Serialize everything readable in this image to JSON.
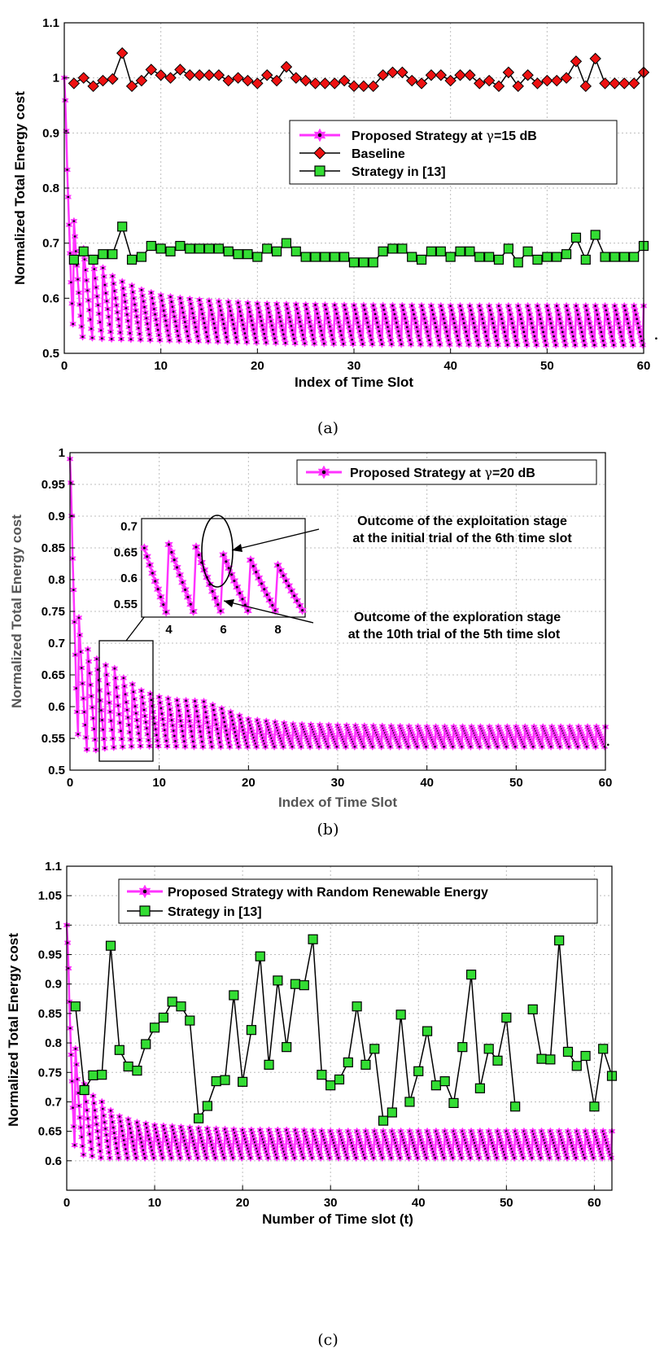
{
  "chart_data": [
    {
      "type": "line",
      "panel": "a",
      "caption": "(a)",
      "xlabel": "Index of Time Slot",
      "ylabel": "Normalized Total Energy cost",
      "xlim": [
        0,
        60
      ],
      "ylim": [
        0.5,
        1.1
      ],
      "xticks": [
        0,
        10,
        20,
        30,
        40,
        50,
        60
      ],
      "xtick_labels": [
        "0",
        "10",
        "20",
        "30",
        "40",
        "50",
        "60"
      ],
      "yticks": [
        0.5,
        0.6,
        0.7,
        0.8,
        0.9,
        1.0,
        1.1
      ],
      "ytick_labels": [
        "0.5",
        "0.6",
        "0.7",
        "0.8",
        "0.9",
        "1",
        "1.1"
      ],
      "grid": true,
      "legend_position": "upper-right",
      "series": [
        {
          "name": "Proposed Strategy at γ=15 dB",
          "legend_label": "Proposed Strategy at ",
          "legend_gamma": "γ",
          "legend_rest": "=15 dB",
          "marker": "hexagram",
          "color": "#ff33ff",
          "oscillating": true,
          "envelope_upper_x": [
            0,
            0.3,
            0.7,
            1,
            1.5,
            2,
            3,
            4,
            5,
            6,
            8,
            10,
            12,
            15,
            20,
            25,
            30,
            40,
            50,
            60
          ],
          "envelope_upper_y": [
            1.0,
            0.9,
            0.8,
            0.74,
            0.71,
            0.69,
            0.67,
            0.655,
            0.64,
            0.63,
            0.615,
            0.605,
            0.6,
            0.595,
            0.59,
            0.588,
            0.587,
            0.586,
            0.586,
            0.586
          ],
          "envelope_lower_x": [
            0,
            0.3,
            0.7,
            1,
            1.5,
            2,
            3,
            4,
            5,
            6,
            8,
            10,
            15,
            20,
            25,
            30,
            40,
            50,
            60
          ],
          "envelope_lower_y": [
            1.0,
            0.7,
            0.58,
            0.54,
            0.53,
            0.53,
            0.528,
            0.527,
            0.526,
            0.526,
            0.525,
            0.524,
            0.522,
            0.52,
            0.518,
            0.517,
            0.516,
            0.515,
            0.515
          ],
          "end_point": [
            61.3,
            0.527
          ]
        },
        {
          "name": "Baseline",
          "legend_label": "Baseline",
          "marker": "diamond",
          "color": "#ee1111",
          "x": [
            1,
            2,
            3,
            4,
            5,
            6,
            7,
            8,
            9,
            10,
            11,
            12,
            13,
            14,
            15,
            16,
            17,
            18,
            19,
            20,
            21,
            22,
            23,
            24,
            25,
            26,
            27,
            28,
            29,
            30,
            31,
            32,
            33,
            34,
            35,
            36,
            37,
            38,
            39,
            40,
            41,
            42,
            43,
            44,
            45,
            46,
            47,
            48,
            49,
            50,
            51,
            52,
            53,
            54,
            55,
            56,
            57,
            58,
            59,
            60
          ],
          "y": [
            0.99,
            1.0,
            0.985,
            0.995,
            0.998,
            1.045,
            0.985,
            0.995,
            1.015,
            1.005,
            1.0,
            1.015,
            1.005,
            1.005,
            1.005,
            1.005,
            0.995,
            1.0,
            0.995,
            0.99,
            1.005,
            0.995,
            1.02,
            1.0,
            0.995,
            0.99,
            0.99,
            0.99,
            0.995,
            0.985,
            0.985,
            0.985,
            1.005,
            1.01,
            1.01,
            0.995,
            0.99,
            1.005,
            1.005,
            0.995,
            1.005,
            1.005,
            0.99,
            0.995,
            0.985,
            1.01,
            0.985,
            1.005,
            0.99,
            0.995,
            0.995,
            1.0,
            1.03,
            0.985,
            1.035,
            0.99,
            0.99,
            0.99,
            0.99,
            1.01
          ]
        },
        {
          "name": "Strategy in [13]",
          "legend_label": "Strategy in [13]",
          "marker": "square",
          "color": "#33dd33",
          "x": [
            1,
            2,
            3,
            4,
            5,
            6,
            7,
            8,
            9,
            10,
            11,
            12,
            13,
            14,
            15,
            16,
            17,
            18,
            19,
            20,
            21,
            22,
            23,
            24,
            25,
            26,
            27,
            28,
            29,
            30,
            31,
            32,
            33,
            34,
            35,
            36,
            37,
            38,
            39,
            40,
            41,
            42,
            43,
            44,
            45,
            46,
            47,
            48,
            49,
            50,
            51,
            52,
            53,
            54,
            55,
            56,
            57,
            58,
            59,
            60
          ],
          "y": [
            0.67,
            0.685,
            0.67,
            0.68,
            0.68,
            0.73,
            0.67,
            0.675,
            0.695,
            0.69,
            0.685,
            0.695,
            0.69,
            0.69,
            0.69,
            0.69,
            0.685,
            0.68,
            0.68,
            0.675,
            0.69,
            0.685,
            0.7,
            0.685,
            0.675,
            0.675,
            0.675,
            0.675,
            0.675,
            0.665,
            0.665,
            0.665,
            0.685,
            0.69,
            0.69,
            0.675,
            0.67,
            0.685,
            0.685,
            0.675,
            0.685,
            0.685,
            0.675,
            0.675,
            0.67,
            0.69,
            0.665,
            0.685,
            0.67,
            0.675,
            0.675,
            0.68,
            0.71,
            0.67,
            0.715,
            0.675,
            0.675,
            0.675,
            0.675,
            0.695
          ]
        }
      ]
    },
    {
      "type": "line",
      "panel": "b",
      "caption": "(b)",
      "xlabel": "Index of Time Slot",
      "ylabel": "Normalized Total Energy cost",
      "xlim": [
        0,
        60
      ],
      "ylim": [
        0.5,
        1.0
      ],
      "xticks": [
        0,
        10,
        20,
        30,
        40,
        50,
        60
      ],
      "xtick_labels": [
        "0",
        "10",
        "20",
        "30",
        "40",
        "50",
        "60"
      ],
      "yticks": [
        0.5,
        0.55,
        0.6,
        0.65,
        0.7,
        0.75,
        0.8,
        0.85,
        0.9,
        0.95,
        1.0
      ],
      "ytick_labels": [
        "0.5",
        "0.55",
        "0.6",
        "0.65",
        "0.7",
        "0.75",
        "0.8",
        "0.85",
        "0.9",
        "0.95",
        "1"
      ],
      "grid": true,
      "legend_position": "upper-right",
      "series": [
        {
          "name": "Proposed Strategy at γ=20 dB",
          "legend_label": "Proposed Strategy at ",
          "legend_gamma": "γ",
          "legend_rest": "=20 dB",
          "marker": "hexagram",
          "color": "#ff33ff",
          "oscillating": true,
          "envelope_upper_x": [
            0,
            0.3,
            0.7,
            1,
            1.5,
            2,
            3,
            4,
            5,
            6,
            8,
            10,
            12,
            15,
            20,
            25,
            30,
            40,
            50,
            60
          ],
          "envelope_upper_y": [
            0.99,
            0.9,
            0.8,
            0.74,
            0.71,
            0.69,
            0.675,
            0.665,
            0.66,
            0.645,
            0.625,
            0.615,
            0.61,
            0.608,
            0.58,
            0.572,
            0.57,
            0.568,
            0.568,
            0.568
          ],
          "envelope_lower_x": [
            0,
            0.3,
            0.7,
            1,
            1.5,
            2,
            3,
            4,
            5,
            6,
            8,
            10,
            15,
            20,
            25,
            30,
            40,
            50,
            60
          ],
          "envelope_lower_y": [
            0.99,
            0.7,
            0.58,
            0.545,
            0.535,
            0.532,
            0.532,
            0.535,
            0.536,
            0.537,
            0.538,
            0.538,
            0.537,
            0.537,
            0.537,
            0.537,
            0.537,
            0.537,
            0.537
          ],
          "end_point": [
            60.3,
            0.54
          ]
        }
      ],
      "inset": {
        "xticks": [
          4,
          6,
          8
        ],
        "xtick_labels": [
          "4",
          "6",
          "8"
        ],
        "yticks": [
          0.55,
          0.6,
          0.65,
          0.7
        ],
        "ytick_labels": [
          "0.55",
          "0.6",
          "0.65",
          "0.7"
        ],
        "xlim": [
          3,
          9
        ],
        "ylim": [
          0.525,
          0.715
        ],
        "zoom_box_x": [
          3.4,
          9.3
        ],
        "zoom_box_y": [
          0.52,
          0.705
        ]
      },
      "annotations": [
        {
          "line1": "Outcome of the exploitation stage",
          "line2": "at the initial trial of the  6th  time slot"
        },
        {
          "line1": "Outcome  of the exploration stage",
          "line2": "at the 10th trial of the 5th time slot"
        }
      ]
    },
    {
      "type": "line",
      "panel": "c",
      "caption": "(c)",
      "xlabel": "Number of Time slot (t)",
      "ylabel": "Normalized Total Energy cost",
      "xlim": [
        0,
        62
      ],
      "ylim": [
        0.55,
        1.1
      ],
      "xticks": [
        0,
        10,
        20,
        30,
        40,
        50,
        60
      ],
      "xtick_labels": [
        "0",
        "10",
        "20",
        "30",
        "40",
        "50",
        "60"
      ],
      "yticks": [
        0.6,
        0.65,
        0.7,
        0.75,
        0.8,
        0.85,
        0.9,
        0.95,
        1.0,
        1.05,
        1.1
      ],
      "ytick_labels": [
        "0.6",
        "0.65",
        "0.7",
        "0.75",
        "0.8",
        "0.85",
        "0.9",
        "0.95",
        "1",
        "1.05",
        "1.1"
      ],
      "grid": true,
      "legend_position": "upper-right",
      "series": [
        {
          "name": "Proposed Strategy with Random Renewable Energy",
          "legend_label": "Proposed Strategy with Random Renewable Energy",
          "marker": "hexagram",
          "color": "#ff33ff",
          "oscillating": true,
          "envelope_upper_x": [
            0,
            0.3,
            0.7,
            1,
            1.5,
            2,
            3,
            4,
            5,
            6,
            8,
            10,
            15,
            20,
            25,
            30,
            40,
            50,
            62
          ],
          "envelope_upper_y": [
            1.0,
            0.93,
            0.83,
            0.79,
            0.75,
            0.73,
            0.71,
            0.7,
            0.685,
            0.675,
            0.665,
            0.66,
            0.655,
            0.652,
            0.652,
            0.65,
            0.65,
            0.65,
            0.65
          ],
          "envelope_lower_x": [
            0,
            0.3,
            0.7,
            1,
            1.5,
            2,
            3,
            4,
            5,
            6,
            8,
            10,
            15,
            20,
            25,
            30,
            40,
            50,
            62
          ],
          "envelope_lower_y": [
            1.0,
            0.75,
            0.65,
            0.615,
            0.612,
            0.61,
            0.608,
            0.605,
            0.605,
            0.605,
            0.605,
            0.605,
            0.605,
            0.605,
            0.605,
            0.605,
            0.605,
            0.605,
            0.605
          ]
        },
        {
          "name": "Strategy in [13]",
          "legend_label": "Strategy in [13]",
          "marker": "square",
          "color": "#33dd33",
          "x": [
            1,
            2,
            3,
            4,
            5,
            6,
            7,
            8,
            9,
            10,
            11,
            12,
            13,
            14,
            15,
            16,
            17,
            18,
            19,
            20,
            21,
            22,
            23,
            24,
            25,
            26,
            27,
            28,
            29,
            30,
            31,
            32,
            33,
            34,
            35,
            36,
            37,
            38,
            39,
            40,
            41,
            42,
            43,
            44,
            45,
            46,
            47,
            48,
            49,
            50,
            51,
            53,
            54,
            55,
            56,
            57,
            58,
            59,
            60,
            61,
            62
          ],
          "y": [
            0.862,
            0.72,
            0.745,
            0.746,
            0.965,
            0.788,
            0.76,
            0.753,
            0.798,
            0.826,
            0.843,
            0.87,
            0.862,
            0.838,
            0.672,
            0.693,
            0.735,
            0.737,
            0.881,
            0.734,
            0.822,
            0.947,
            0.763,
            0.906,
            0.793,
            0.9,
            0.898,
            0.976,
            0.746,
            0.728,
            0.738,
            0.767,
            0.862,
            0.763,
            0.79,
            0.668,
            0.682,
            0.848,
            0.7,
            0.752,
            0.82,
            0.728,
            0.735,
            0.698,
            0.793,
            0.916,
            0.723,
            0.79,
            0.77,
            0.843,
            0.692,
            0.857,
            0.773,
            0.772,
            0.974,
            0.785,
            0.761,
            0.778,
            0.692,
            0.79,
            0.744
          ]
        }
      ]
    }
  ]
}
